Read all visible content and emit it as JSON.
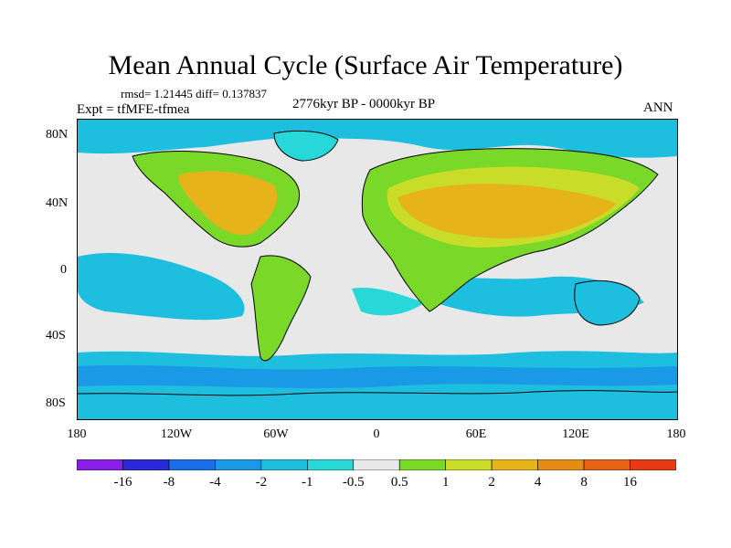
{
  "title": "Mean Annual Cycle (Surface Air Temperature)",
  "stats": "rmsd= 1.21445 diff= 0.137837",
  "experiment": "Expt = tfMFE-tfmea",
  "period": "2776kyr BP - 0000kyr BP",
  "season": "ANN",
  "lat_labels": [
    "80N",
    "40N",
    "0",
    "40S",
    "80S"
  ],
  "lon_labels": [
    "180",
    "120W",
    "60W",
    "0",
    "60E",
    "120E",
    "180"
  ],
  "colorbar": {
    "labels": [
      "-16",
      "-8",
      "-4",
      "-2",
      "-1",
      "-0.5",
      "0.5",
      "1",
      "2",
      "4",
      "8",
      "16"
    ],
    "colors": [
      "#8a1ee6",
      "#2a2ad9",
      "#1a6ee6",
      "#1a9ae6",
      "#1ebedf",
      "#28d8d8",
      "#e8e8e8",
      "#7ad828",
      "#c8dc28",
      "#e6b41a",
      "#e68c14",
      "#e6641a",
      "#e63a14"
    ]
  },
  "map_colors": {
    "neutral": "#e8e8e8",
    "cool_light": "#28d8d8",
    "cool": "#1ebedf",
    "cool_mid": "#1a9ae6",
    "warm_light": "#7ad828",
    "warm": "#c8dc28",
    "warm_strong": "#e6b41a",
    "warm_max": "#d69a1a"
  }
}
